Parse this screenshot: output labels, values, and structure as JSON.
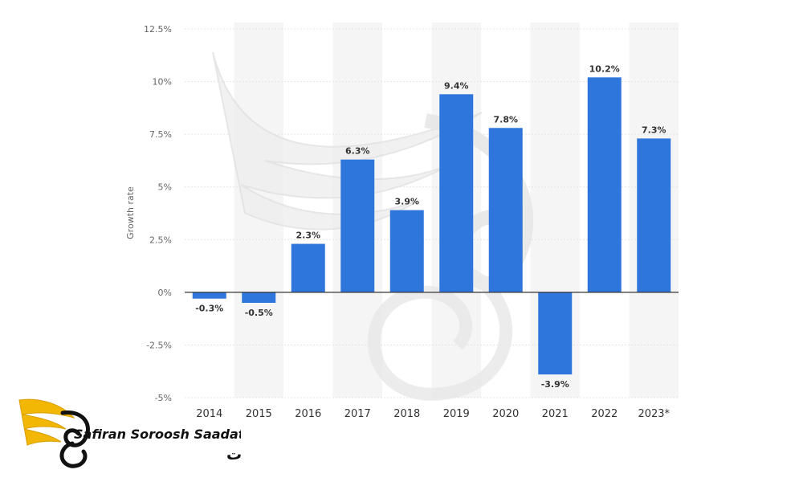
{
  "chart_data": {
    "type": "bar",
    "categories": [
      "2014",
      "2015",
      "2016",
      "2017",
      "2018",
      "2019",
      "2020",
      "2021",
      "2022",
      "2023*"
    ],
    "values": [
      -0.3,
      -0.5,
      2.3,
      6.3,
      3.9,
      9.4,
      7.8,
      -3.9,
      10.2,
      7.3
    ],
    "data_labels": [
      "-0.3%",
      "-0.5%",
      "2.3%",
      "6.3%",
      "3.9%",
      "9.4%",
      "7.8%",
      "-3.9%",
      "10.2%",
      "7.3%"
    ],
    "ylabel": "Growth rate",
    "xlabel": "",
    "ylim": [
      -5,
      12.5
    ],
    "yticks": [
      -5,
      -2.5,
      0,
      2.5,
      5,
      7.5,
      10,
      12.5
    ],
    "ytick_labels": [
      "-5%",
      "-2.5%",
      "0%",
      "2.5%",
      "5%",
      "7.5%",
      "10%",
      "12.5%"
    ],
    "bar_color": "#2f76dc",
    "grid": true,
    "legend": "none"
  },
  "watermark": {
    "brand_en": "Safiran Soroosh Saadat",
    "brand_fa": "سفیران سروش سعادت",
    "accent_color": "#f2b705"
  }
}
